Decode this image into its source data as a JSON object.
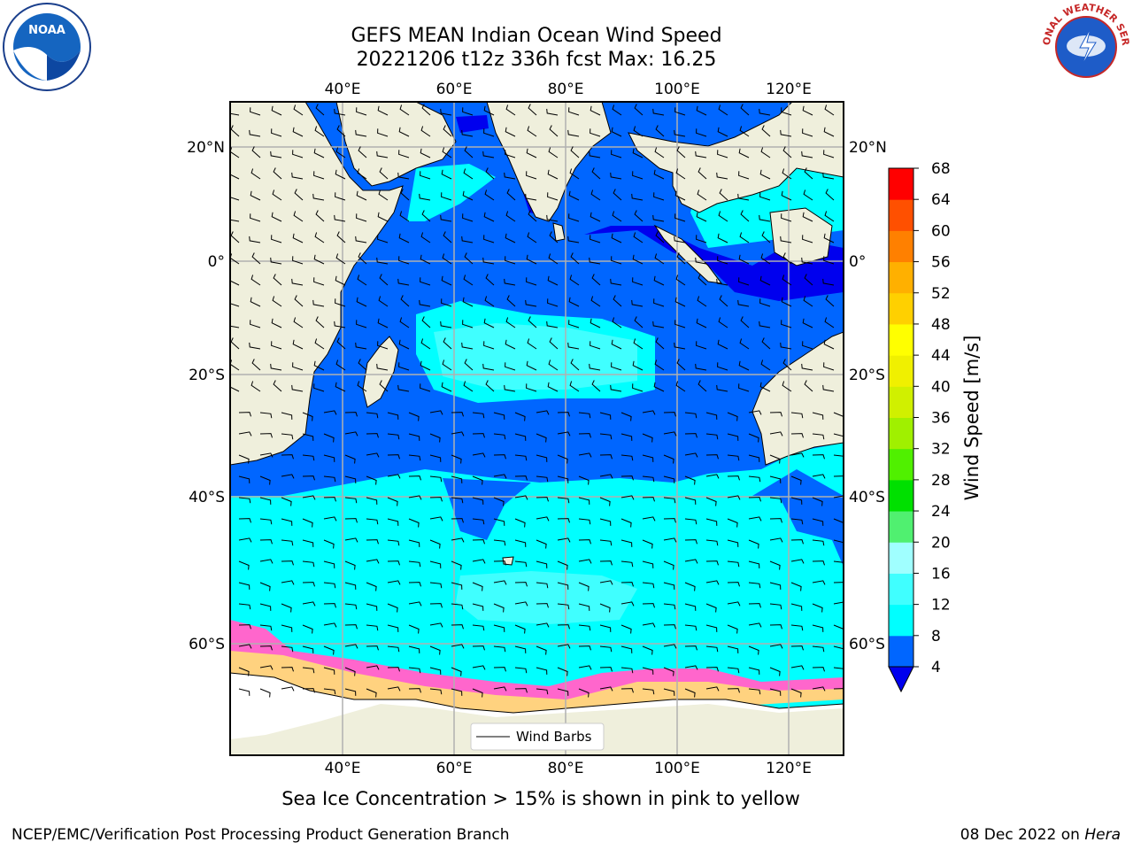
{
  "header": {
    "title_line1": "GEFS MEAN Indian Ocean Wind Speed",
    "title_line2": "20221206 t12z 336h fcst   Max: 16.25"
  },
  "logos": {
    "left": {
      "icon": "noaa-logo-icon",
      "text": "NOAA"
    },
    "right": {
      "icon": "national-weather-service-logo-icon",
      "text": "NATIONAL WEATHER SERVICE"
    }
  },
  "map": {
    "lon_labels_top": [
      "40°E",
      "60°E",
      "80°E",
      "100°E",
      "120°E"
    ],
    "lon_labels_bottom": [
      "40°E",
      "60°E",
      "80°E",
      "100°E",
      "120°E"
    ],
    "lat_labels_left": [
      "20°N",
      "0°",
      "20°S",
      "40°S",
      "60°S"
    ],
    "lat_labels_right": [
      "20°N",
      "0°",
      "20°S",
      "40°S",
      "60°S"
    ],
    "legend_label": "Wind Barbs",
    "colors": {
      "land": "#efefdc",
      "ice": "#ffffff",
      "grid": "#b0b0b0"
    }
  },
  "colorbar": {
    "label": "Wind Speed [m/s]",
    "ticks": [
      "4",
      "8",
      "12",
      "16",
      "20",
      "24",
      "28",
      "32",
      "36",
      "40",
      "44",
      "48",
      "52",
      "56",
      "60",
      "64",
      "68"
    ],
    "colors": [
      "#0066ff",
      "#00ffff",
      "#40ffff",
      "#a0ffff",
      "#50f070",
      "#00e000",
      "#50f000",
      "#a0f000",
      "#d0f000",
      "#f0f000",
      "#ffff00",
      "#ffd000",
      "#ffb000",
      "#ff8000",
      "#ff5000",
      "#ff0000"
    ],
    "under_color": "#0000ee"
  },
  "caption": "Sea Ice Concentration > 15% is shown in pink to yellow",
  "footer": {
    "left": "NCEP/EMC/Verification Post Processing Product Generation Branch",
    "date": "08 Dec 2022 on ",
    "machine": "Hera"
  }
}
